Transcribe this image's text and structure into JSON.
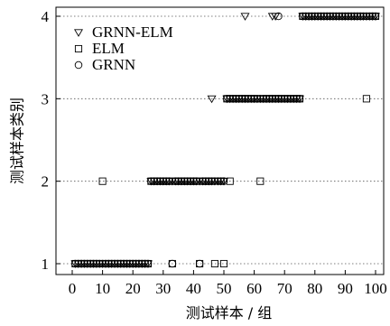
{
  "chart_data": {
    "type": "scatter",
    "xlabel": "测试样本 / 组",
    "ylabel": "测试样本类别",
    "xlim": [
      0,
      100
    ],
    "ylim": [
      1,
      4
    ],
    "xticks": [
      0,
      10,
      20,
      30,
      40,
      50,
      60,
      70,
      80,
      90,
      100
    ],
    "yticks": [
      1,
      2,
      3,
      4
    ],
    "grid": "horizontal-dotted",
    "legend_position": "top-left",
    "series": [
      {
        "name": "GRNN-ELM",
        "marker": "triangle-down",
        "points": [
          [
            1,
            1
          ],
          [
            2,
            1
          ],
          [
            3,
            1
          ],
          [
            4,
            1
          ],
          [
            5,
            1
          ],
          [
            6,
            1
          ],
          [
            7,
            1
          ],
          [
            8,
            1
          ],
          [
            9,
            1
          ],
          [
            10,
            1
          ],
          [
            11,
            1
          ],
          [
            12,
            1
          ],
          [
            13,
            1
          ],
          [
            14,
            1
          ],
          [
            15,
            1
          ],
          [
            16,
            1
          ],
          [
            17,
            1
          ],
          [
            18,
            1
          ],
          [
            19,
            1
          ],
          [
            20,
            1
          ],
          [
            21,
            1
          ],
          [
            22,
            1
          ],
          [
            23,
            1
          ],
          [
            24,
            1
          ],
          [
            25,
            1
          ],
          [
            26,
            2
          ],
          [
            27,
            2
          ],
          [
            28,
            2
          ],
          [
            29,
            2
          ],
          [
            30,
            2
          ],
          [
            31,
            2
          ],
          [
            32,
            2
          ],
          [
            33,
            2
          ],
          [
            34,
            2
          ],
          [
            35,
            2
          ],
          [
            36,
            2
          ],
          [
            37,
            2
          ],
          [
            38,
            2
          ],
          [
            39,
            2
          ],
          [
            40,
            2
          ],
          [
            41,
            2
          ],
          [
            42,
            2
          ],
          [
            43,
            2
          ],
          [
            44,
            2
          ],
          [
            45,
            2
          ],
          [
            46,
            2
          ],
          [
            47,
            2
          ],
          [
            48,
            2
          ],
          [
            49,
            2
          ],
          [
            50,
            2
          ],
          [
            46,
            3
          ],
          [
            51,
            3
          ],
          [
            52,
            3
          ],
          [
            53,
            3
          ],
          [
            54,
            3
          ],
          [
            55,
            3
          ],
          [
            56,
            3
          ],
          [
            57,
            3
          ],
          [
            58,
            3
          ],
          [
            59,
            3
          ],
          [
            60,
            3
          ],
          [
            61,
            3
          ],
          [
            62,
            3
          ],
          [
            63,
            3
          ],
          [
            64,
            3
          ],
          [
            65,
            3
          ],
          [
            66,
            3
          ],
          [
            67,
            3
          ],
          [
            68,
            3
          ],
          [
            69,
            3
          ],
          [
            70,
            3
          ],
          [
            71,
            3
          ],
          [
            72,
            3
          ],
          [
            73,
            3
          ],
          [
            74,
            3
          ],
          [
            75,
            3
          ],
          [
            57,
            4
          ],
          [
            66,
            4
          ],
          [
            67,
            4
          ],
          [
            76,
            4
          ],
          [
            77,
            4
          ],
          [
            78,
            4
          ],
          [
            79,
            4
          ],
          [
            80,
            4
          ],
          [
            81,
            4
          ],
          [
            82,
            4
          ],
          [
            83,
            4
          ],
          [
            84,
            4
          ],
          [
            85,
            4
          ],
          [
            86,
            4
          ],
          [
            87,
            4
          ],
          [
            88,
            4
          ],
          [
            89,
            4
          ],
          [
            90,
            4
          ],
          [
            91,
            4
          ],
          [
            92,
            4
          ],
          [
            93,
            4
          ],
          [
            94,
            4
          ],
          [
            95,
            4
          ],
          [
            96,
            4
          ],
          [
            97,
            4
          ],
          [
            98,
            4
          ],
          [
            99,
            4
          ],
          [
            100,
            4
          ]
        ]
      },
      {
        "name": "ELM",
        "marker": "square",
        "points": [
          [
            1,
            1
          ],
          [
            2,
            1
          ],
          [
            3,
            1
          ],
          [
            4,
            1
          ],
          [
            5,
            1
          ],
          [
            6,
            1
          ],
          [
            7,
            1
          ],
          [
            8,
            1
          ],
          [
            9,
            1
          ],
          [
            11,
            1
          ],
          [
            12,
            1
          ],
          [
            13,
            1
          ],
          [
            14,
            1
          ],
          [
            15,
            1
          ],
          [
            16,
            1
          ],
          [
            17,
            1
          ],
          [
            18,
            1
          ],
          [
            19,
            1
          ],
          [
            20,
            1
          ],
          [
            21,
            1
          ],
          [
            22,
            1
          ],
          [
            23,
            1
          ],
          [
            24,
            1
          ],
          [
            25,
            1
          ],
          [
            10,
            2
          ],
          [
            26,
            2
          ],
          [
            27,
            2
          ],
          [
            28,
            2
          ],
          [
            29,
            2
          ],
          [
            30,
            2
          ],
          [
            31,
            2
          ],
          [
            32,
            2
          ],
          [
            34,
            2
          ],
          [
            35,
            2
          ],
          [
            36,
            2
          ],
          [
            37,
            2
          ],
          [
            38,
            2
          ],
          [
            39,
            2
          ],
          [
            40,
            2
          ],
          [
            41,
            2
          ],
          [
            43,
            2
          ],
          [
            44,
            2
          ],
          [
            45,
            2
          ],
          [
            46,
            2
          ],
          [
            49,
            2
          ],
          [
            52,
            2
          ],
          [
            62,
            2
          ],
          [
            33,
            1
          ],
          [
            42,
            1
          ],
          [
            47,
            1
          ],
          [
            50,
            1
          ],
          [
            51,
            3
          ],
          [
            52,
            3
          ],
          [
            53,
            3
          ],
          [
            54,
            3
          ],
          [
            55,
            3
          ],
          [
            56,
            3
          ],
          [
            57,
            3
          ],
          [
            58,
            3
          ],
          [
            59,
            3
          ],
          [
            60,
            3
          ],
          [
            61,
            3
          ],
          [
            63,
            3
          ],
          [
            64,
            3
          ],
          [
            65,
            3
          ],
          [
            66,
            3
          ],
          [
            67,
            3
          ],
          [
            68,
            3
          ],
          [
            69,
            3
          ],
          [
            70,
            3
          ],
          [
            71,
            3
          ],
          [
            72,
            3
          ],
          [
            73,
            3
          ],
          [
            74,
            3
          ],
          [
            75,
            3
          ],
          [
            97,
            3
          ],
          [
            76,
            4
          ],
          [
            77,
            4
          ],
          [
            78,
            4
          ],
          [
            79,
            4
          ],
          [
            80,
            4
          ],
          [
            81,
            4
          ],
          [
            82,
            4
          ],
          [
            83,
            4
          ],
          [
            84,
            4
          ],
          [
            85,
            4
          ],
          [
            86,
            4
          ],
          [
            87,
            4
          ],
          [
            88,
            4
          ],
          [
            89,
            4
          ],
          [
            90,
            4
          ],
          [
            91,
            4
          ],
          [
            92,
            4
          ],
          [
            93,
            4
          ],
          [
            94,
            4
          ],
          [
            95,
            4
          ],
          [
            96,
            4
          ],
          [
            98,
            4
          ],
          [
            99,
            4
          ],
          [
            100,
            4
          ]
        ]
      },
      {
        "name": "GRNN",
        "marker": "circle",
        "points": [
          [
            1,
            1
          ],
          [
            2,
            1
          ],
          [
            3,
            1
          ],
          [
            4,
            1
          ],
          [
            5,
            1
          ],
          [
            6,
            1
          ],
          [
            7,
            1
          ],
          [
            8,
            1
          ],
          [
            9,
            1
          ],
          [
            10,
            1
          ],
          [
            11,
            1
          ],
          [
            12,
            1
          ],
          [
            13,
            1
          ],
          [
            14,
            1
          ],
          [
            15,
            1
          ],
          [
            16,
            1
          ],
          [
            17,
            1
          ],
          [
            18,
            1
          ],
          [
            19,
            1
          ],
          [
            20,
            1
          ],
          [
            21,
            1
          ],
          [
            22,
            1
          ],
          [
            23,
            1
          ],
          [
            24,
            1
          ],
          [
            25,
            1
          ],
          [
            33,
            1
          ],
          [
            42,
            1
          ],
          [
            26,
            2
          ],
          [
            27,
            2
          ],
          [
            28,
            2
          ],
          [
            29,
            2
          ],
          [
            30,
            2
          ],
          [
            31,
            2
          ],
          [
            32,
            2
          ],
          [
            34,
            2
          ],
          [
            35,
            2
          ],
          [
            36,
            2
          ],
          [
            37,
            2
          ],
          [
            38,
            2
          ],
          [
            39,
            2
          ],
          [
            40,
            2
          ],
          [
            41,
            2
          ],
          [
            43,
            2
          ],
          [
            44,
            2
          ],
          [
            45,
            2
          ],
          [
            46,
            2
          ],
          [
            47,
            2
          ],
          [
            48,
            2
          ],
          [
            49,
            2
          ],
          [
            50,
            2
          ],
          [
            51,
            3
          ],
          [
            52,
            3
          ],
          [
            53,
            3
          ],
          [
            54,
            3
          ],
          [
            55,
            3
          ],
          [
            56,
            3
          ],
          [
            57,
            3
          ],
          [
            58,
            3
          ],
          [
            59,
            3
          ],
          [
            60,
            3
          ],
          [
            61,
            3
          ],
          [
            62,
            3
          ],
          [
            63,
            3
          ],
          [
            64,
            3
          ],
          [
            65,
            3
          ],
          [
            66,
            3
          ],
          [
            67,
            3
          ],
          [
            68,
            3
          ],
          [
            69,
            3
          ],
          [
            70,
            3
          ],
          [
            71,
            3
          ],
          [
            72,
            3
          ],
          [
            73,
            3
          ],
          [
            74,
            3
          ],
          [
            75,
            3
          ],
          [
            68,
            4
          ],
          [
            76,
            4
          ],
          [
            77,
            4
          ],
          [
            78,
            4
          ],
          [
            79,
            4
          ],
          [
            80,
            4
          ],
          [
            81,
            4
          ],
          [
            82,
            4
          ],
          [
            83,
            4
          ],
          [
            84,
            4
          ],
          [
            85,
            4
          ],
          [
            86,
            4
          ],
          [
            87,
            4
          ],
          [
            88,
            4
          ],
          [
            89,
            4
          ],
          [
            90,
            4
          ],
          [
            91,
            4
          ],
          [
            92,
            4
          ],
          [
            93,
            4
          ],
          [
            94,
            4
          ],
          [
            95,
            4
          ],
          [
            96,
            4
          ],
          [
            97,
            4
          ],
          [
            98,
            4
          ],
          [
            99,
            4
          ],
          [
            100,
            4
          ]
        ]
      }
    ]
  }
}
